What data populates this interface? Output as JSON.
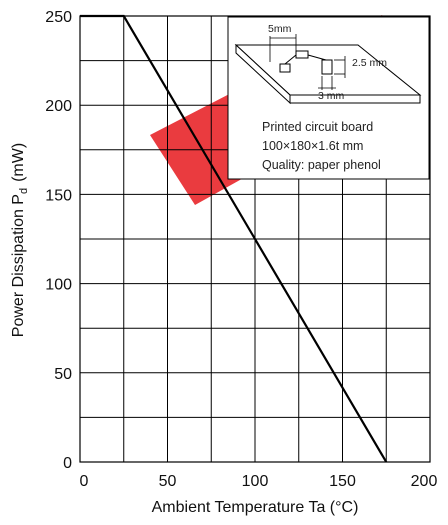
{
  "chart_data": {
    "type": "line",
    "xlabel": "Ambient Temperature Ta (°C)",
    "ylabel_main": "Power Dissipation P",
    "ylabel_sub": "d",
    "ylabel_unit": "(mW)",
    "xlim": [
      0,
      200
    ],
    "ylim": [
      0,
      250
    ],
    "xticks": [
      0,
      50,
      100,
      150,
      200
    ],
    "yticks": [
      0,
      50,
      100,
      150,
      200,
      250
    ],
    "grid": true,
    "series": [
      {
        "x": [
          0,
          25,
          175
        ],
        "y": [
          250,
          250,
          0
        ]
      }
    ],
    "inset": {
      "dim_5mm": "5mm",
      "dim_2_5mm": "2.5 mm",
      "dim_3mm": "3 mm",
      "line1": "Printed circuit board",
      "line2": "100×180×1.6t mm",
      "line3": "Quality: paper phenol"
    },
    "watermark_color": "#e8262a"
  }
}
